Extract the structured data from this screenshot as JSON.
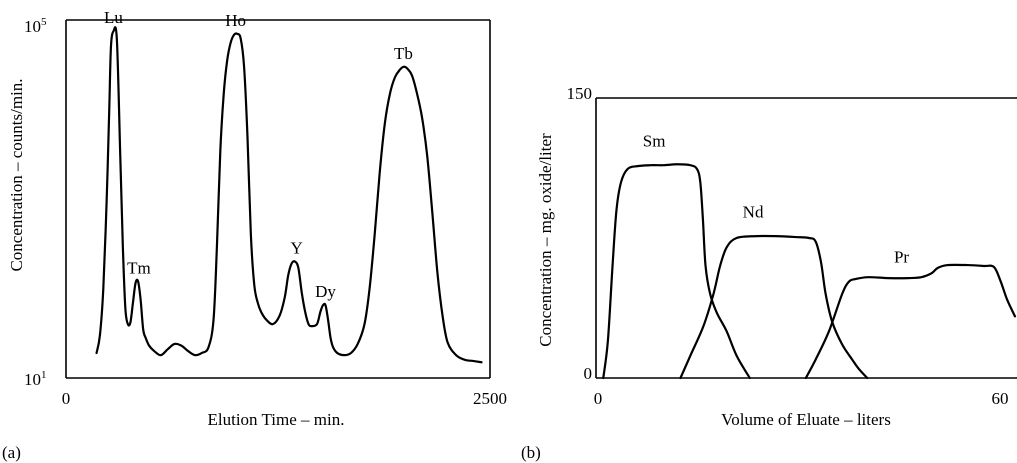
{
  "chart_data": [
    {
      "type": "line",
      "panel_label": "(a)",
      "xlabel": "Elution Time – min.",
      "ylabel": "Concentration – counts/min.",
      "x_ticks": [
        "0",
        "2500"
      ],
      "xlim": [
        0,
        2500
      ],
      "ylim_base": "10",
      "y_ticks": [
        {
          "base": "10",
          "exp": "5"
        },
        {
          "base": "10",
          "exp": "1"
        }
      ],
      "yscale": "log",
      "ylim": [
        10,
        100000
      ],
      "grid": false,
      "peaks": [
        {
          "label": "Lu",
          "x": 280,
          "y": 75000
        },
        {
          "label": "Tm",
          "x": 430,
          "y": 120
        },
        {
          "label": "Ho",
          "x": 1000,
          "y": 70000
        },
        {
          "label": "Y",
          "x": 1360,
          "y": 200
        },
        {
          "label": "Dy",
          "x": 1530,
          "y": 65
        },
        {
          "label": "Tb",
          "x": 1990,
          "y": 30000
        }
      ],
      "series": [
        {
          "x": [
            180,
            200,
            220,
            240,
            255,
            265,
            280,
            300,
            320,
            335,
            350,
            365,
            380,
            395,
            410,
            425,
            440,
            455,
            470,
            490,
            520,
            560,
            600,
            640,
            680,
            720,
            760,
            800,
            840,
            870,
            890,
            910,
            930,
            950,
            970,
            990,
            1010,
            1030,
            1050,
            1070,
            1090,
            1110,
            1130,
            1150,
            1180,
            1220,
            1260,
            1290,
            1310,
            1330,
            1350,
            1370,
            1390,
            1410,
            1430,
            1450,
            1480,
            1500,
            1515,
            1530,
            1545,
            1560,
            1575,
            1600,
            1640,
            1680,
            1720,
            1760,
            1790,
            1820,
            1850,
            1880,
            1910,
            1940,
            1970,
            1990,
            2010,
            2040,
            2070,
            2100,
            2130,
            2160,
            2190,
            2220,
            2250,
            2300,
            2350,
            2400,
            2450
          ],
          "y": [
            19,
            30,
            100,
            1000,
            10000,
            50000,
            75000,
            60000,
            3000,
            300,
            60,
            40,
            42,
            70,
            115,
            120,
            75,
            35,
            28,
            23,
            20,
            18,
            21,
            24,
            23,
            20,
            18,
            19,
            22,
            45,
            300,
            3500,
            15000,
            35000,
            55000,
            68000,
            70000,
            62000,
            30000,
            5000,
            400,
            110,
            70,
            55,
            45,
            40,
            50,
            80,
            140,
            190,
            200,
            170,
            90,
            55,
            40,
            38,
            40,
            55,
            65,
            65,
            45,
            28,
            22,
            19,
            18,
            19,
            24,
            40,
            100,
            400,
            2000,
            7000,
            15000,
            23000,
            28000,
            30000,
            29000,
            24000,
            15000,
            8000,
            3000,
            700,
            150,
            50,
            25,
            18,
            16,
            15.5,
            15
          ]
        }
      ]
    },
    {
      "type": "line",
      "panel_label": "(b)",
      "xlabel": "Volume of Eluate – liters",
      "ylabel": "Concentration – mg. oxide/liter",
      "x_ticks": [
        "0",
        "60"
      ],
      "y_ticks": [
        "0",
        "150"
      ],
      "xlim": [
        0,
        63.5
      ],
      "ylim": [
        0,
        150
      ],
      "grid": false,
      "series": [
        {
          "name": "Sm",
          "x": [
            0.8,
            1.5,
            2.2,
            2.8,
            3.5,
            4.5,
            6,
            8,
            10,
            12,
            14,
            15,
            15.5,
            15.9,
            16.3,
            17,
            18,
            19.5,
            21,
            23
          ],
          "y": [
            0,
            20,
            60,
            90,
            105,
            112,
            113.5,
            114,
            114,
            114.5,
            114,
            112,
            105,
            85,
            60,
            45,
            35,
            25,
            12,
            0
          ]
        },
        {
          "name": "Nd",
          "x": [
            12.5,
            14,
            16,
            17.5,
            18.5,
            19.5,
            21,
            24,
            27,
            30,
            32,
            33,
            33.8,
            34.5,
            35.5,
            37,
            38.5,
            39.5,
            40.8
          ],
          "y": [
            0,
            12,
            28,
            45,
            60,
            70,
            75,
            76,
            76,
            75.5,
            75,
            73,
            62,
            45,
            30,
            18,
            10,
            5,
            0
          ]
        },
        {
          "name": "Pr",
          "x": [
            31.5,
            33,
            35,
            37,
            38,
            39,
            41,
            44,
            47,
            49,
            50.5,
            51.5,
            53,
            56,
            58.5,
            60,
            61,
            62,
            63.2
          ],
          "y": [
            0,
            10,
            25,
            45,
            51.5,
            53,
            54,
            53.5,
            53.5,
            54,
            56,
            59,
            60.5,
            60.5,
            60,
            59.5,
            52,
            42,
            33
          ]
        }
      ],
      "labels": [
        {
          "text": "Sm",
          "x": 8.5,
          "y": 124
        },
        {
          "text": "Nd",
          "x": 23.5,
          "y": 86
        },
        {
          "text": "Pr",
          "x": 46,
          "y": 62
        }
      ]
    }
  ]
}
